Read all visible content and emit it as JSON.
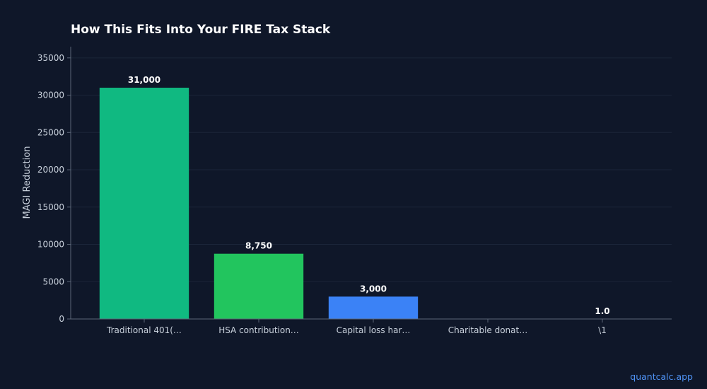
{
  "chart_data": {
    "type": "bar",
    "title": "How This Fits Into Your FIRE Tax Stack",
    "xlabel": "",
    "ylabel": "MAGI Reduction",
    "categories": [
      "Traditional 401(…",
      "HSA contribution…",
      "Capital loss har…",
      "Charitable donat…",
      "\\1"
    ],
    "values": [
      31000,
      8750,
      3000,
      0,
      1.0
    ],
    "data_labels": [
      "31,000",
      "8,750",
      "3,000",
      "",
      "1.0"
    ],
    "colors": [
      "#10b981",
      "#22c55e",
      "#3b82f6",
      "#f59e0b",
      "#8b5cf6"
    ],
    "ylim": [
      0,
      36500
    ],
    "yticks": [
      0,
      5000,
      10000,
      15000,
      20000,
      25000,
      30000,
      35000
    ],
    "ytick_labels": [
      "0",
      "5000",
      "10000",
      "15000",
      "20000",
      "25000",
      "30000",
      "35000"
    ],
    "grid": true,
    "background": "#0f1729"
  },
  "watermark": "quantcalc.app"
}
